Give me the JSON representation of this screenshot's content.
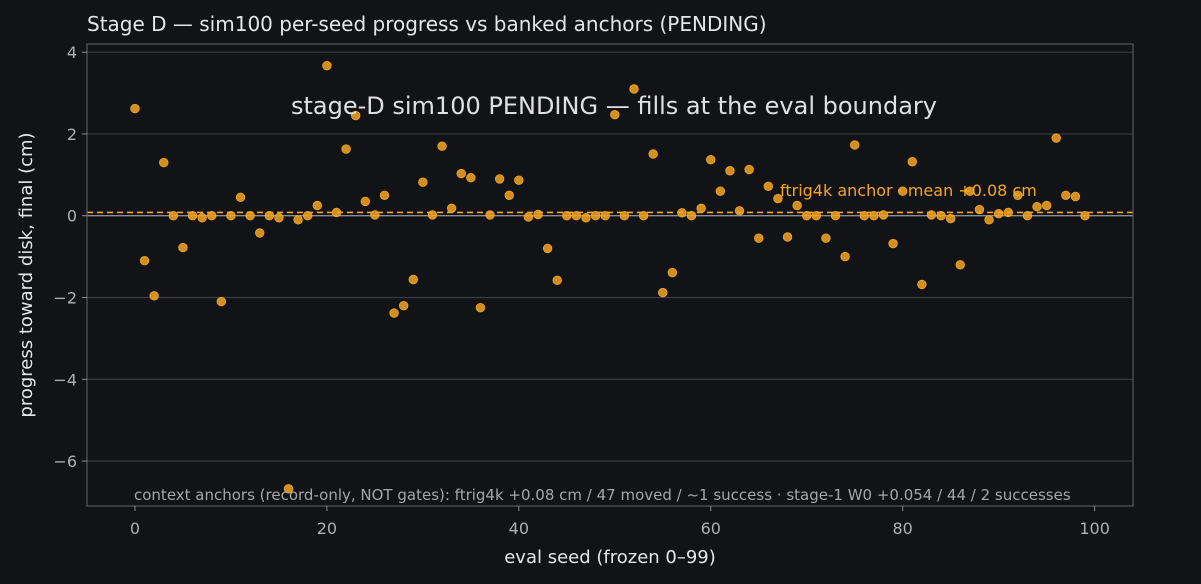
{
  "colors": {
    "background": "#121316",
    "plot_background": "#121316",
    "point": "#f5a623",
    "anchor_line": "#f5a623",
    "grid": "#3a3c41",
    "zero_line": "#8a8d92"
  },
  "chart_data": {
    "type": "scatter",
    "title": "Stage D — sim100 per-seed progress vs banked anchors (PENDING)",
    "xlabel": "eval seed (frozen 0–99)",
    "ylabel": "progress toward disk, final (cm)",
    "xlim": [
      -5,
      104
    ],
    "ylim": [
      -7.1,
      4.2
    ],
    "xticks": [
      0,
      20,
      40,
      60,
      80,
      100
    ],
    "yticks": [
      -6,
      -4,
      -2,
      0,
      2,
      4
    ],
    "xtick_labels": [
      "0",
      "20",
      "40",
      "60",
      "80",
      "100"
    ],
    "ytick_labels": [
      "−6",
      "−4",
      "−2",
      "0",
      "2",
      "4"
    ],
    "grid": true,
    "overlay_text": "stage-D sim100 PENDING — fills at the eval boundary",
    "reference_line": {
      "y": 0.08,
      "style": "dashed",
      "label": "ftrig4k anchor · mean +0.08 cm"
    },
    "context_note": "context anchors (record-only, NOT gates): ftrig4k +0.08 cm / 47 moved / ~1 success · stage-1 W0 +0.054 / 44 / 2 successes",
    "x": [
      0,
      1,
      2,
      3,
      4,
      5,
      6,
      7,
      8,
      9,
      10,
      11,
      12,
      13,
      14,
      15,
      16,
      17,
      18,
      19,
      20,
      21,
      22,
      23,
      24,
      25,
      26,
      27,
      28,
      29,
      30,
      31,
      32,
      33,
      34,
      35,
      36,
      37,
      38,
      39,
      40,
      41,
      42,
      43,
      44,
      45,
      46,
      47,
      48,
      49,
      50,
      51,
      52,
      53,
      54,
      55,
      56,
      57,
      58,
      59,
      60,
      61,
      62,
      63,
      64,
      65,
      66,
      67,
      68,
      69,
      70,
      71,
      72,
      73,
      74,
      75,
      76,
      77,
      78,
      79,
      80,
      81,
      82,
      83,
      84,
      85,
      86,
      87,
      88,
      89,
      90,
      91,
      92,
      93,
      94,
      95,
      96,
      97,
      98,
      99
    ],
    "y": [
      2.62,
      -1.1,
      -1.96,
      1.3,
      0.0,
      -0.78,
      0.0,
      -0.05,
      0.0,
      -2.1,
      0.0,
      0.45,
      0.0,
      -0.42,
      0.0,
      -0.05,
      -6.68,
      -0.1,
      0.0,
      0.25,
      3.67,
      0.08,
      1.63,
      2.45,
      0.35,
      0.02,
      0.5,
      -2.38,
      -2.2,
      -1.56,
      0.82,
      0.02,
      1.7,
      0.18,
      1.03,
      0.93,
      -2.25,
      0.02,
      0.9,
      0.5,
      0.87,
      -0.03,
      0.03,
      -0.8,
      -1.58,
      0.0,
      0.0,
      -0.05,
      0.0,
      0.0,
      2.47,
      0.0,
      3.1,
      0.0,
      1.51,
      -1.88,
      -1.39,
      0.07,
      0.0,
      0.18,
      1.37,
      0.6,
      1.1,
      0.12,
      1.13,
      -0.55,
      0.72,
      0.42,
      -0.52,
      0.25,
      0.0,
      0.0,
      -0.55,
      0.0,
      -1.0,
      1.73,
      0.0,
      0.0,
      0.02,
      -0.68,
      0.6,
      1.32,
      -1.68,
      0.02,
      0.0,
      -0.07,
      -1.2,
      0.6,
      0.15,
      -0.1,
      0.05,
      0.08,
      0.5,
      0.0,
      0.22,
      0.25,
      1.9,
      0.5,
      0.47,
      0.0
    ]
  }
}
